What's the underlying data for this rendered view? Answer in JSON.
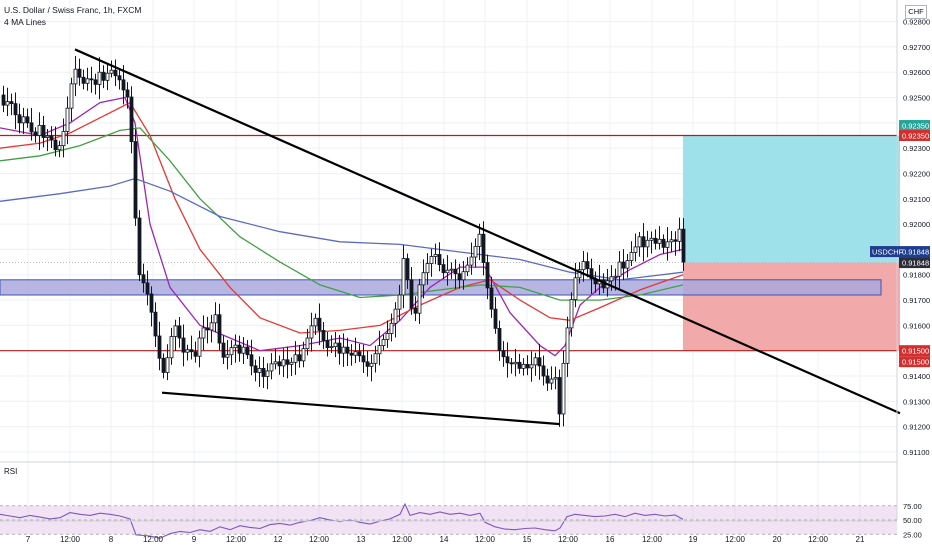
{
  "header": {
    "title": "U.S. Dollar / Swiss Franc, 1h, FXCM",
    "indicator": "4 MA Lines",
    "currency": "CHF"
  },
  "rsi": {
    "label": "RSI",
    "levels": [
      75,
      50,
      25
    ]
  },
  "tags": {
    "symbol": "USDCHF",
    "last_price": "0.91848",
    "last_price_2": "0.91848",
    "target": "0.92350",
    "target_red": "0.92350",
    "stop": "0.91500",
    "stop_2": "0.91500"
  },
  "colors": {
    "candle": "#131722",
    "ma_fast": "#9c27b0",
    "ma_mid": "#e53935",
    "ma_slow": "#43a047",
    "ma_long": "#5c6bc0",
    "target_zone": "#9fe1ea",
    "stop_zone": "#f2a9a9",
    "support_band": "#aaa8dc",
    "hline": "#b71c1c",
    "trendline": "#000000"
  },
  "chart_data": {
    "type": "candlestick",
    "title": "U.S. Dollar / Swiss Franc, 1h, FXCM",
    "ylim": [
      0.9108,
      0.9283
    ],
    "y_ticks": [
      "0.92800",
      "0.92700",
      "0.92600",
      "0.92500",
      "0.92400",
      "0.92300",
      "0.92200",
      "0.92100",
      "0.92000",
      "0.91900",
      "0.91800",
      "0.91700",
      "0.91600",
      "0.91500",
      "0.91400",
      "0.91300",
      "0.91200",
      "0.91100"
    ],
    "x_ticks": [
      "7",
      "12:00",
      "8",
      "12:00",
      "9",
      "12:00",
      "12",
      "12:00",
      "13",
      "12:00",
      "14",
      "12:00",
      "15",
      "12:00",
      "16",
      "12:00",
      "19",
      "12:00",
      "20",
      "12:00",
      "21"
    ],
    "price_path": [
      [
        0,
        0.9251
      ],
      [
        5,
        0.9246
      ],
      [
        10,
        0.925
      ],
      [
        15,
        0.9244
      ],
      [
        20,
        0.924
      ],
      [
        25,
        0.9243
      ],
      [
        30,
        0.9238
      ],
      [
        35,
        0.9234
      ],
      [
        40,
        0.9239
      ],
      [
        45,
        0.9233
      ],
      [
        50,
        0.9236
      ],
      [
        55,
        0.9229
      ],
      [
        60,
        0.9231
      ],
      [
        65,
        0.9238
      ],
      [
        70,
        0.9251
      ],
      [
        75,
        0.9262
      ],
      [
        80,
        0.9258
      ],
      [
        85,
        0.9255
      ],
      [
        90,
        0.9259
      ],
      [
        95,
        0.9254
      ],
      [
        100,
        0.926
      ],
      [
        105,
        0.9256
      ],
      [
        110,
        0.9262
      ],
      [
        115,
        0.9259
      ],
      [
        120,
        0.9257
      ],
      [
        125,
        0.9252
      ],
      [
        130,
        0.9249
      ],
      [
        135,
        0.9208
      ],
      [
        140,
        0.918
      ],
      [
        145,
        0.9176
      ],
      [
        150,
        0.917
      ],
      [
        155,
        0.9158
      ],
      [
        160,
        0.9147
      ],
      [
        165,
        0.914
      ],
      [
        170,
        0.9152
      ],
      [
        175,
        0.9161
      ],
      [
        180,
        0.9155
      ],
      [
        185,
        0.9148
      ],
      [
        190,
        0.9152
      ],
      [
        195,
        0.9146
      ],
      [
        200,
        0.9155
      ],
      [
        205,
        0.916
      ],
      [
        210,
        0.9157
      ],
      [
        215,
        0.9167
      ],
      [
        220,
        0.9153
      ],
      [
        225,
        0.9146
      ],
      [
        230,
        0.915
      ],
      [
        235,
        0.9153
      ],
      [
        240,
        0.9149
      ],
      [
        245,
        0.9152
      ],
      [
        250,
        0.9146
      ],
      [
        255,
        0.9141
      ],
      [
        260,
        0.9143
      ],
      [
        265,
        0.9139
      ],
      [
        270,
        0.9144
      ],
      [
        275,
        0.9146
      ],
      [
        280,
        0.9144
      ],
      [
        285,
        0.9147
      ],
      [
        290,
        0.9143
      ],
      [
        295,
        0.9149
      ],
      [
        300,
        0.9146
      ],
      [
        305,
        0.9152
      ],
      [
        310,
        0.9157
      ],
      [
        315,
        0.9164
      ],
      [
        320,
        0.9158
      ],
      [
        325,
        0.9153
      ],
      [
        330,
        0.915
      ],
      [
        335,
        0.9154
      ],
      [
        340,
        0.9149
      ],
      [
        345,
        0.9152
      ],
      [
        350,
        0.9147
      ],
      [
        355,
        0.915
      ],
      [
        360,
        0.9148
      ],
      [
        365,
        0.9145
      ],
      [
        370,
        0.9143
      ],
      [
        375,
        0.9148
      ],
      [
        380,
        0.9152
      ],
      [
        385,
        0.9155
      ],
      [
        390,
        0.9158
      ],
      [
        395,
        0.9165
      ],
      [
        400,
        0.9172
      ],
      [
        405,
        0.919
      ],
      [
        410,
        0.917
      ],
      [
        415,
        0.9162
      ],
      [
        420,
        0.9176
      ],
      [
        425,
        0.9182
      ],
      [
        430,
        0.9186
      ],
      [
        435,
        0.9189
      ],
      [
        440,
        0.9184
      ],
      [
        445,
        0.918
      ],
      [
        450,
        0.9183
      ],
      [
        455,
        0.9181
      ],
      [
        460,
        0.9178
      ],
      [
        465,
        0.9182
      ],
      [
        470,
        0.9185
      ],
      [
        475,
        0.919
      ],
      [
        480,
        0.9196
      ],
      [
        485,
        0.9182
      ],
      [
        490,
        0.917
      ],
      [
        495,
        0.9161
      ],
      [
        500,
        0.915
      ],
      [
        505,
        0.9147
      ],
      [
        510,
        0.9144
      ],
      [
        515,
        0.9146
      ],
      [
        520,
        0.9143
      ],
      [
        525,
        0.9145
      ],
      [
        530,
        0.9142
      ],
      [
        535,
        0.9148
      ],
      [
        540,
        0.9144
      ],
      [
        545,
        0.9139
      ],
      [
        550,
        0.9136
      ],
      [
        555,
        0.9143
      ],
      [
        560,
        0.9125
      ],
      [
        565,
        0.915
      ],
      [
        570,
        0.9165
      ],
      [
        575,
        0.9178
      ],
      [
        580,
        0.9182
      ],
      [
        585,
        0.9186
      ],
      [
        590,
        0.918
      ],
      [
        595,
        0.9176
      ],
      [
        600,
        0.9178
      ],
      [
        605,
        0.9174
      ],
      [
        610,
        0.918
      ],
      [
        615,
        0.9178
      ],
      [
        620,
        0.9185
      ],
      [
        625,
        0.9182
      ],
      [
        630,
        0.9188
      ],
      [
        635,
        0.919
      ],
      [
        640,
        0.9195
      ],
      [
        645,
        0.919
      ],
      [
        650,
        0.9196
      ],
      [
        655,
        0.9192
      ],
      [
        660,
        0.9194
      ],
      [
        665,
        0.919
      ],
      [
        670,
        0.9195
      ],
      [
        675,
        0.9192
      ],
      [
        680,
        0.9198
      ],
      [
        683,
        0.9185
      ]
    ],
    "moving_averages": [
      {
        "name": "MA fast",
        "color": "#9c27b0",
        "points": [
          [
            0,
            0.9238
          ],
          [
            40,
            0.9235
          ],
          [
            70,
            0.924
          ],
          [
            100,
            0.9248
          ],
          [
            125,
            0.925
          ],
          [
            135,
            0.924
          ],
          [
            150,
            0.92
          ],
          [
            170,
            0.9175
          ],
          [
            200,
            0.916
          ],
          [
            230,
            0.9155
          ],
          [
            260,
            0.915
          ],
          [
            300,
            0.9152
          ],
          [
            340,
            0.9155
          ],
          [
            370,
            0.9152
          ],
          [
            400,
            0.9162
          ],
          [
            430,
            0.9175
          ],
          [
            460,
            0.9183
          ],
          [
            485,
            0.9183
          ],
          [
            510,
            0.9165
          ],
          [
            540,
            0.9152
          ],
          [
            555,
            0.9148
          ],
          [
            565,
            0.9152
          ],
          [
            580,
            0.9168
          ],
          [
            600,
            0.9175
          ],
          [
            630,
            0.9182
          ],
          [
            660,
            0.9188
          ],
          [
            683,
            0.919
          ]
        ]
      },
      {
        "name": "MA mid",
        "color": "#e53935",
        "points": [
          [
            0,
            0.923
          ],
          [
            40,
            0.9232
          ],
          [
            70,
            0.9236
          ],
          [
            100,
            0.9242
          ],
          [
            130,
            0.9248
          ],
          [
            150,
            0.9235
          ],
          [
            175,
            0.921
          ],
          [
            200,
            0.919
          ],
          [
            230,
            0.9175
          ],
          [
            260,
            0.9163
          ],
          [
            300,
            0.9157
          ],
          [
            340,
            0.9158
          ],
          [
            380,
            0.916
          ],
          [
            420,
            0.9168
          ],
          [
            460,
            0.9175
          ],
          [
            490,
            0.9178
          ],
          [
            520,
            0.917
          ],
          [
            550,
            0.9163
          ],
          [
            570,
            0.9162
          ],
          [
            600,
            0.9167
          ],
          [
            640,
            0.9174
          ],
          [
            683,
            0.918
          ]
        ]
      },
      {
        "name": "MA slow",
        "color": "#43a047",
        "points": [
          [
            0,
            0.9225
          ],
          [
            40,
            0.9227
          ],
          [
            80,
            0.9231
          ],
          [
            120,
            0.9237
          ],
          [
            140,
            0.9238
          ],
          [
            170,
            0.9225
          ],
          [
            200,
            0.921
          ],
          [
            240,
            0.9195
          ],
          [
            280,
            0.9185
          ],
          [
            320,
            0.9176
          ],
          [
            360,
            0.9171
          ],
          [
            400,
            0.9172
          ],
          [
            440,
            0.9174
          ],
          [
            480,
            0.9176
          ],
          [
            520,
            0.9175
          ],
          [
            560,
            0.917
          ],
          [
            600,
            0.917
          ],
          [
            640,
            0.9172
          ],
          [
            683,
            0.9176
          ]
        ]
      },
      {
        "name": "MA long",
        "color": "#5c6bc0",
        "points": [
          [
            0,
            0.9209
          ],
          [
            60,
            0.9212
          ],
          [
            110,
            0.9215
          ],
          [
            135,
            0.9218
          ],
          [
            170,
            0.9213
          ],
          [
            220,
            0.9203
          ],
          [
            280,
            0.9197
          ],
          [
            340,
            0.9193
          ],
          [
            400,
            0.9192
          ],
          [
            460,
            0.9189
          ],
          [
            520,
            0.9186
          ],
          [
            570,
            0.9181
          ],
          [
            620,
            0.9178
          ],
          [
            683,
            0.9181
          ]
        ]
      }
    ],
    "rsi_path": [
      [
        0,
        60
      ],
      [
        10,
        57
      ],
      [
        20,
        54
      ],
      [
        30,
        58
      ],
      [
        40,
        55
      ],
      [
        50,
        52
      ],
      [
        60,
        54
      ],
      [
        70,
        63
      ],
      [
        80,
        60
      ],
      [
        90,
        58
      ],
      [
        100,
        62
      ],
      [
        110,
        60
      ],
      [
        120,
        57
      ],
      [
        130,
        52
      ],
      [
        136,
        24
      ],
      [
        150,
        22
      ],
      [
        160,
        18
      ],
      [
        170,
        26
      ],
      [
        180,
        30
      ],
      [
        190,
        28
      ],
      [
        200,
        33
      ],
      [
        210,
        30
      ],
      [
        220,
        38
      ],
      [
        230,
        33
      ],
      [
        240,
        40
      ],
      [
        250,
        37
      ],
      [
        260,
        35
      ],
      [
        270,
        42
      ],
      [
        280,
        44
      ],
      [
        290,
        41
      ],
      [
        300,
        46
      ],
      [
        310,
        49
      ],
      [
        320,
        54
      ],
      [
        330,
        50
      ],
      [
        340,
        47
      ],
      [
        350,
        50
      ],
      [
        360,
        46
      ],
      [
        370,
        43
      ],
      [
        380,
        48
      ],
      [
        390,
        52
      ],
      [
        400,
        60
      ],
      [
        405,
        78
      ],
      [
        410,
        58
      ],
      [
        420,
        63
      ],
      [
        430,
        60
      ],
      [
        440,
        64
      ],
      [
        450,
        60
      ],
      [
        460,
        62
      ],
      [
        470,
        58
      ],
      [
        480,
        62
      ],
      [
        485,
        46
      ],
      [
        495,
        38
      ],
      [
        505,
        34
      ],
      [
        515,
        33
      ],
      [
        525,
        35
      ],
      [
        535,
        36
      ],
      [
        545,
        33
      ],
      [
        555,
        31
      ],
      [
        560,
        36
      ],
      [
        567,
        56
      ],
      [
        575,
        60
      ],
      [
        585,
        58
      ],
      [
        595,
        56
      ],
      [
        605,
        57
      ],
      [
        615,
        60
      ],
      [
        625,
        56
      ],
      [
        635,
        62
      ],
      [
        645,
        58
      ],
      [
        655,
        60
      ],
      [
        665,
        57
      ],
      [
        675,
        59
      ],
      [
        683,
        51
      ]
    ],
    "annotations": {
      "target_price": 0.9235,
      "stop_price": 0.915,
      "last_price": 0.91848,
      "support_band": [
        0.9172,
        0.9178
      ],
      "trendline_upper": [
        [
          75,
          0.9269
        ],
        [
          900,
          0.91253
        ]
      ],
      "trendline_lower": [
        [
          162,
          0.91334
        ],
        [
          560,
          0.9121
        ]
      ],
      "position_box": {
        "x_start": 683,
        "x_end": 900,
        "entry": 0.91848,
        "target": 0.9235,
        "stop": 0.915
      }
    }
  }
}
